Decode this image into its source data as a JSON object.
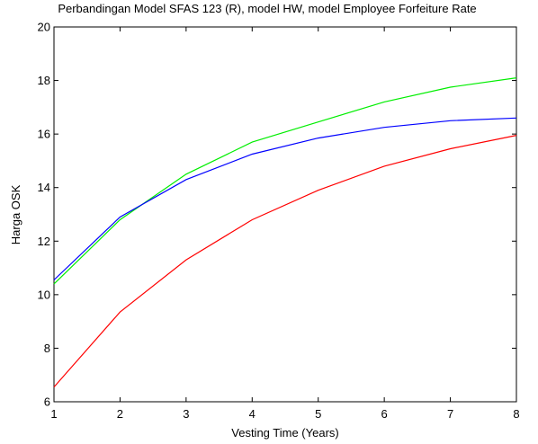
{
  "chart_data": {
    "type": "line",
    "title": "Perbandingan Model SFAS 123 (R), model HW, model Employee Forfeiture Rate",
    "xlabel": "Vesting Time (Years)",
    "ylabel": "Harga OSK",
    "xlim": [
      1,
      8
    ],
    "ylim": [
      6,
      20
    ],
    "x": [
      1,
      2,
      3,
      4,
      5,
      6,
      7,
      8
    ],
    "xticks": [
      "1",
      "2",
      "3",
      "4",
      "5",
      "6",
      "7",
      "8"
    ],
    "yticks": [
      "6",
      "8",
      "10",
      "12",
      "14",
      "16",
      "18",
      "20"
    ],
    "grid": false,
    "legend": "none",
    "series": [
      {
        "color": "#00ee00",
        "values": [
          10.4,
          12.8,
          14.5,
          15.7,
          16.45,
          17.2,
          17.75,
          18.1
        ]
      },
      {
        "color": "#0000ff",
        "values": [
          10.55,
          12.9,
          14.3,
          15.25,
          15.85,
          16.25,
          16.5,
          16.6
        ]
      },
      {
        "color": "#ff0000",
        "values": [
          6.55,
          9.35,
          11.3,
          12.8,
          13.9,
          14.8,
          15.45,
          15.95
        ]
      }
    ]
  }
}
